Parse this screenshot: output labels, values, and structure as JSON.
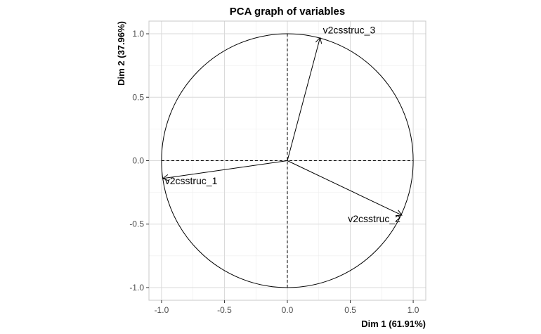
{
  "chart_data": {
    "type": "scatter",
    "title": "PCA graph of variables",
    "xlabel": "Dim 1 (61.91%)",
    "ylabel": "Dim 2 (37.96%)",
    "xlim": [
      -1.1,
      1.1
    ],
    "ylim": [
      -1.1,
      1.1
    ],
    "xticks": [
      -1.0,
      -0.5,
      0.0,
      0.5,
      1.0
    ],
    "yticks": [
      -1.0,
      -0.5,
      0.0,
      0.5,
      1.0
    ],
    "xtick_labels": [
      "-1.0",
      "-0.5",
      "0.0",
      "0.5",
      "1.0"
    ],
    "ytick_labels": [
      "-1.0",
      "-0.5",
      "0.0",
      "0.5",
      "1.0"
    ],
    "grid": true,
    "unit_circle": true,
    "variables": [
      {
        "name": "v2csstruc_1",
        "x": -0.99,
        "y": -0.14
      },
      {
        "name": "v2csstruc_2",
        "x": 0.91,
        "y": -0.43
      },
      {
        "name": "v2csstruc_3",
        "x": 0.26,
        "y": 0.97
      }
    ]
  }
}
